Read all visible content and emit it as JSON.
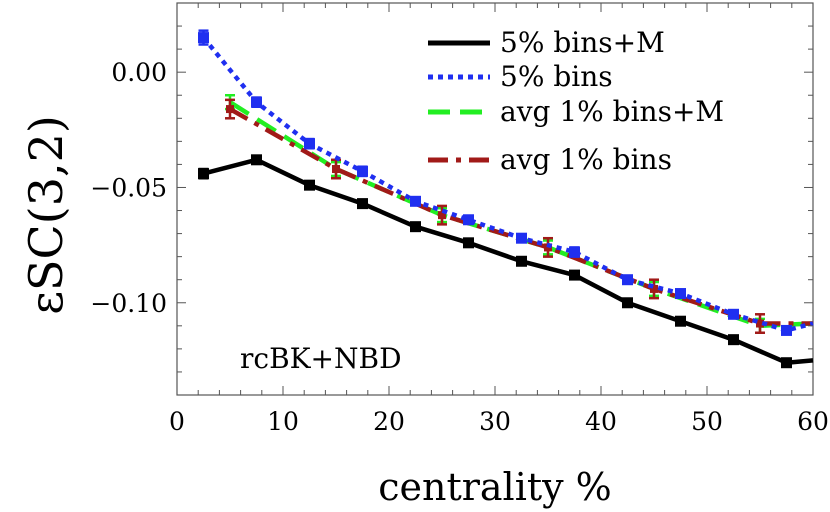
{
  "chart_data": {
    "type": "line",
    "title": "",
    "xlabel": "centrality %",
    "ylabel": "εSC(3,2)",
    "xlim": [
      0,
      60
    ],
    "ylim": [
      -0.14,
      0.03
    ],
    "xticks": [
      0,
      10,
      20,
      30,
      40,
      50,
      60
    ],
    "xtick_labels": [
      "0",
      "10",
      "20",
      "30",
      "40",
      "50",
      "60"
    ],
    "yticks": [
      0.0,
      -0.05,
      -0.1
    ],
    "ytick_labels": [
      "0.00",
      "−0.05",
      "−0.10"
    ],
    "legend_position": "top-right",
    "annotation": "rcBK+NBD",
    "series": [
      {
        "name": "5% bins+M",
        "color": "#000000",
        "style": "solid",
        "marker": "square",
        "x": [
          2.5,
          7.5,
          12.5,
          17.5,
          22.5,
          27.5,
          32.5,
          37.5,
          42.5,
          47.5,
          52.5,
          57.5,
          60
        ],
        "y": [
          -0.044,
          -0.038,
          -0.049,
          -0.057,
          -0.067,
          -0.074,
          -0.082,
          -0.088,
          -0.1,
          -0.108,
          -0.116,
          -0.126,
          -0.125
        ],
        "err": [
          0.002,
          0.0015,
          0.0015,
          0.0015,
          0.0015,
          0.0015,
          0.0015,
          0.0015,
          0.0015,
          0.0015,
          0.0015,
          0.0015,
          null
        ]
      },
      {
        "name": "5% bins",
        "color": "#1f2ff0",
        "style": "dotted",
        "marker": "square",
        "x": [
          2.5,
          7.5,
          12.5,
          17.5,
          22.5,
          27.5,
          32.5,
          37.5,
          42.5,
          47.5,
          52.5,
          57.5,
          60
        ],
        "y": [
          0.015,
          -0.013,
          -0.031,
          -0.043,
          -0.056,
          -0.064,
          -0.072,
          -0.078,
          -0.09,
          -0.096,
          -0.105,
          -0.112,
          -0.109
        ],
        "err": [
          0.003,
          0.002,
          0.002,
          0.002,
          0.0015,
          0.0015,
          0.0015,
          0.002,
          0.0015,
          0.0015,
          0.0015,
          0.0015,
          null
        ]
      },
      {
        "name": "avg 1% bins+M",
        "color": "#22ee22",
        "style": "dashed",
        "marker": "none",
        "x": [
          5,
          15,
          25,
          35,
          45,
          55,
          60
        ],
        "y": [
          -0.013,
          -0.042,
          -0.062,
          -0.076,
          -0.094,
          -0.11,
          -0.109
        ],
        "err": [
          0.003,
          0.003,
          0.003,
          0.003,
          0.003,
          0.003,
          null
        ]
      },
      {
        "name": "avg 1% bins",
        "color": "#a11a18",
        "style": "dashdot",
        "marker": "errorbar",
        "x": [
          5,
          15,
          25,
          35,
          45,
          55,
          60
        ],
        "y": [
          -0.016,
          -0.042,
          -0.062,
          -0.076,
          -0.094,
          -0.109,
          -0.109
        ],
        "err": [
          0.004,
          0.004,
          0.004,
          0.004,
          0.004,
          0.004,
          null
        ]
      }
    ]
  }
}
